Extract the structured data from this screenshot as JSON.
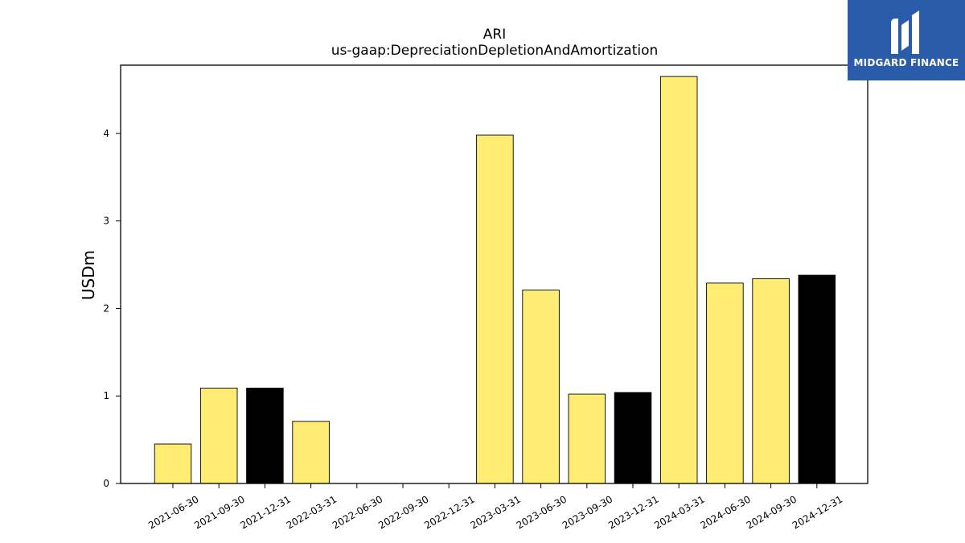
{
  "logo": {
    "text": "MIDGARD FINANCE"
  },
  "chart_data": {
    "type": "bar",
    "title": "ARI",
    "subtitle": "us-gaap:DepreciationDepletionAndAmortization",
    "ylabel": "USDm",
    "xlabel": "",
    "ylim": [
      0,
      4.78
    ],
    "yticks": [
      0,
      1,
      2,
      3,
      4
    ],
    "grid": false,
    "categories": [
      "2021-06-30",
      "2021-09-30",
      "2021-12-31",
      "2022-03-31",
      "2022-06-30",
      "2022-09-30",
      "2022-12-31",
      "2023-03-31",
      "2023-06-30",
      "2023-09-30",
      "2023-12-31",
      "2024-03-31",
      "2024-06-30",
      "2024-09-30",
      "2024-12-31"
    ],
    "values": [
      0.45,
      1.09,
      1.09,
      0.71,
      0,
      0,
      0,
      3.98,
      2.21,
      1.02,
      1.04,
      4.65,
      2.29,
      2.34,
      2.38
    ],
    "bar_colors": [
      "#ffec72",
      "#ffec72",
      "#000000",
      "#ffec72",
      "#ffec72",
      "#ffec72",
      "#000000",
      "#ffec72",
      "#ffec72",
      "#ffec72",
      "#000000",
      "#ffec72",
      "#ffec72",
      "#ffec72",
      "#000000"
    ]
  }
}
